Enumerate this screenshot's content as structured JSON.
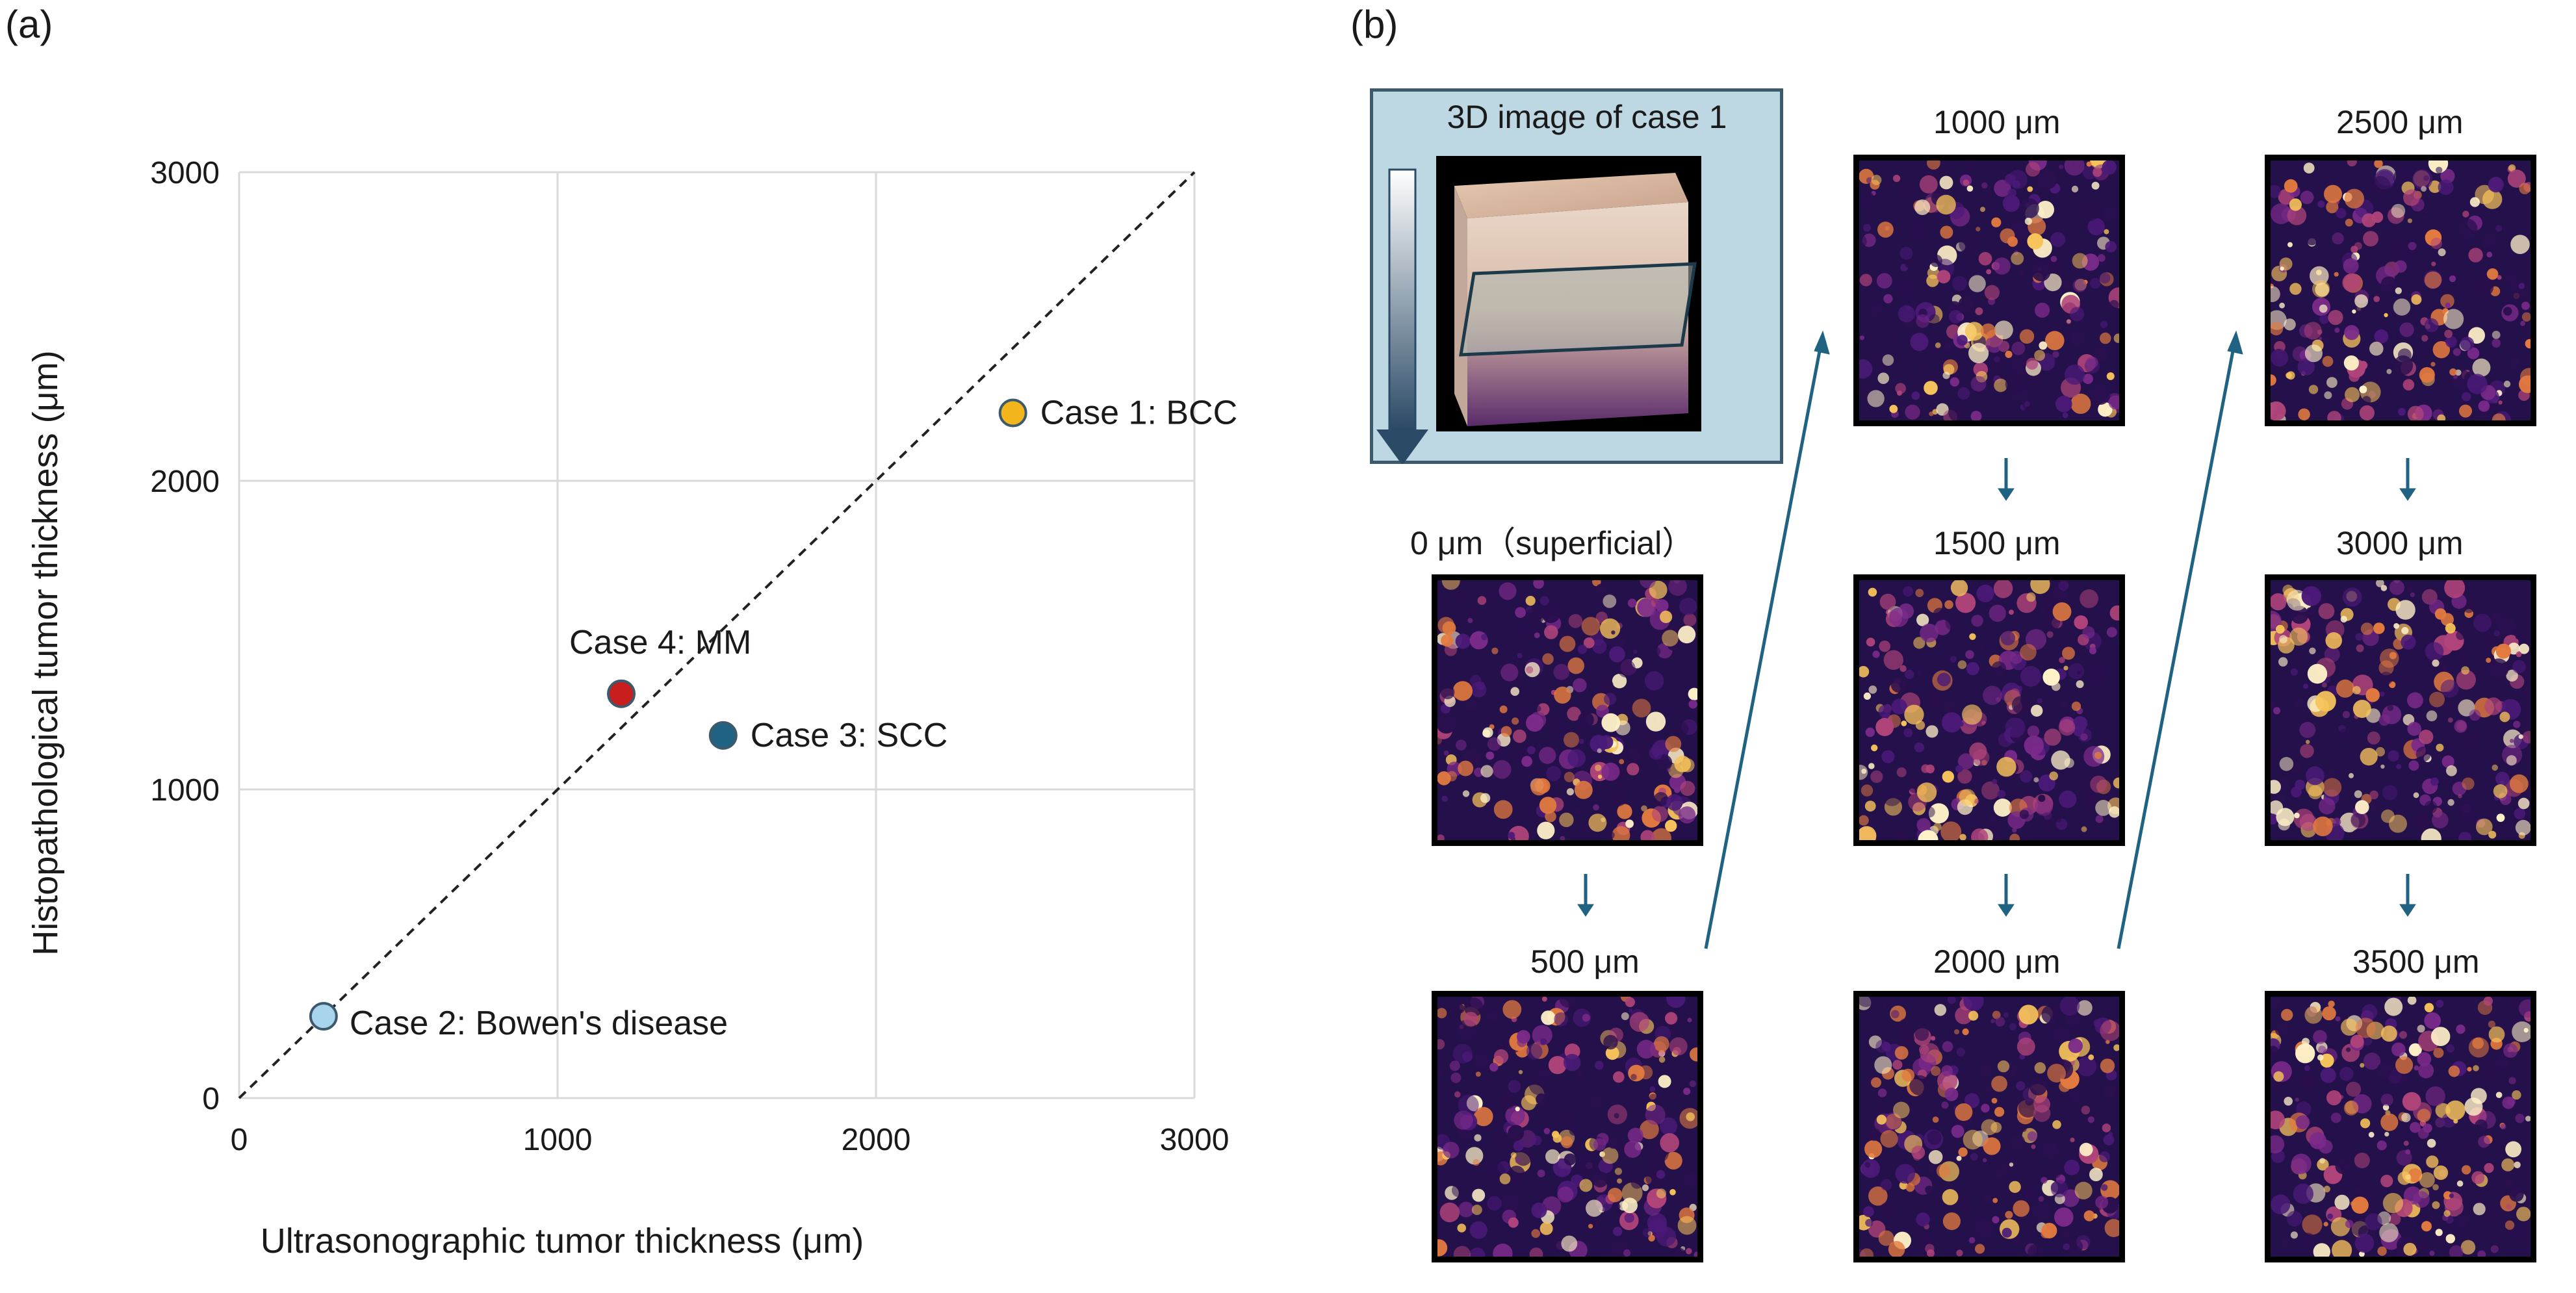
{
  "panel_a_label": "(a)",
  "panel_b_label": "(b)",
  "chart_data": {
    "type": "scatter",
    "title": "",
    "xlabel": "Ultrasonographic tumor thickness (μm)",
    "ylabel": "Histopathological tumor thickness (μm)",
    "xlim": [
      0,
      3000
    ],
    "ylim": [
      0,
      3000
    ],
    "x_ticks": [
      "0",
      "1000",
      "2000",
      "3000"
    ],
    "y_ticks": [
      "0",
      "1000",
      "2000",
      "3000"
    ],
    "grid": true,
    "reference_line": "y = x",
    "points": [
      {
        "label": "Case 1: BCC",
        "x": 2430,
        "y": 2220,
        "color": "#f2b51c"
      },
      {
        "label": "Case 2: Bowen's disease",
        "x": 265,
        "y": 265,
        "color": "#a8d4ec"
      },
      {
        "label": "Case 3: SCC",
        "x": 1520,
        "y": 1175,
        "color": "#1f6282"
      },
      {
        "label": "Case 4: MM",
        "x": 1200,
        "y": 1310,
        "color": "#c81e1e"
      }
    ]
  },
  "panel_b": {
    "box_title": "3D image of case 1",
    "slices": [
      {
        "label": "0 μm（superficial）"
      },
      {
        "label": "500 μm"
      },
      {
        "label": "1000 μm"
      },
      {
        "label": "1500 μm"
      },
      {
        "label": "2000 μm"
      },
      {
        "label": "2500 μm"
      },
      {
        "label": "3000 μm"
      },
      {
        "label": "3500 μm"
      }
    ]
  }
}
